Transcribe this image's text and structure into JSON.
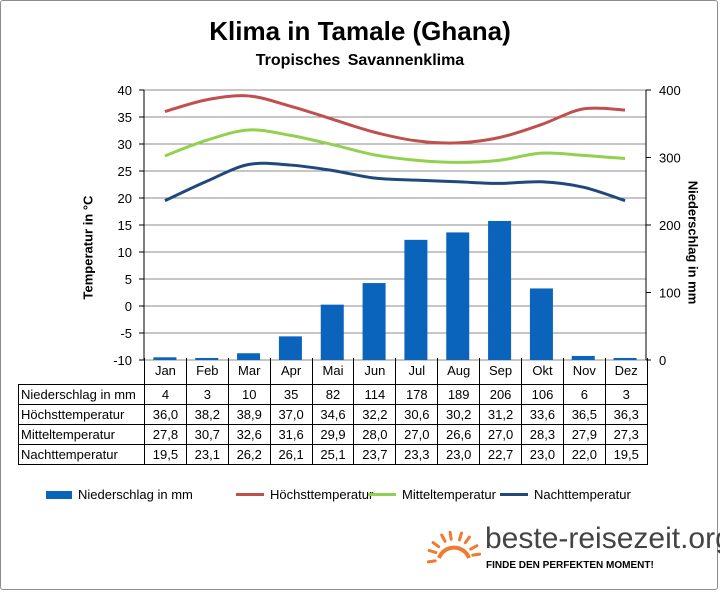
{
  "title": "Klima in Tamale (Ghana)",
  "subtitle": "Tropisches Savannenklima",
  "brand": {
    "name": "beste-reisezeit.org",
    "tagline": "FINDE DEN PERFEKTEN MOMENT!",
    "icon": "sun-icon",
    "color": "#f07a2e"
  },
  "chart_data": {
    "type": "bar+line",
    "categories": [
      "Jan",
      "Feb",
      "Mar",
      "Apr",
      "Mai",
      "Jun",
      "Jul",
      "Aug",
      "Sep",
      "Okt",
      "Nov",
      "Dez"
    ],
    "y_left": {
      "label": "Temperatur in °C",
      "ticks": [
        "40",
        "35",
        "30",
        "25",
        "20",
        "15",
        "10",
        "5",
        "0",
        "-5",
        "-10"
      ],
      "range": [
        -10,
        40
      ]
    },
    "y_right": {
      "label": "Niederschlag in mm",
      "ticks": [
        "400",
        "300",
        "200",
        "100",
        "0"
      ],
      "range": [
        0,
        400
      ]
    },
    "series": [
      {
        "name": "Niederschlag in mm",
        "kind": "bar",
        "axis": "right",
        "color": "#0a64bc",
        "values": [
          4,
          3,
          10,
          35,
          82,
          114,
          178,
          189,
          206,
          106,
          6,
          3
        ],
        "display": [
          "4",
          "3",
          "10",
          "35",
          "82",
          "114",
          "178",
          "189",
          "206",
          "106",
          "6",
          "3"
        ]
      },
      {
        "name": "Höchsttemperatur",
        "kind": "line",
        "axis": "left",
        "color": "#c0504d",
        "values": [
          36.0,
          38.2,
          38.9,
          37.0,
          34.6,
          32.2,
          30.6,
          30.2,
          31.2,
          33.6,
          36.5,
          36.3
        ],
        "display": [
          "36,0",
          "38,2",
          "38,9",
          "37,0",
          "34,6",
          "32,2",
          "30,6",
          "30,2",
          "31,2",
          "33,6",
          "36,5",
          "36,3"
        ]
      },
      {
        "name": "Mitteltemperatur",
        "kind": "line",
        "axis": "left",
        "color": "#92d050",
        "values": [
          27.8,
          30.7,
          32.6,
          31.6,
          29.9,
          28.0,
          27.0,
          26.6,
          27.0,
          28.3,
          27.9,
          27.3
        ],
        "display": [
          "27,8",
          "30,7",
          "32,6",
          "31,6",
          "29,9",
          "28,0",
          "27,0",
          "26,6",
          "27,0",
          "28,3",
          "27,9",
          "27,3"
        ]
      },
      {
        "name": "Nachttemperatur",
        "kind": "line",
        "axis": "left",
        "color": "#1f497d",
        "values": [
          19.5,
          23.1,
          26.2,
          26.1,
          25.1,
          23.7,
          23.3,
          23.0,
          22.7,
          23.0,
          22.0,
          19.5
        ],
        "display": [
          "19,5",
          "23,1",
          "26,2",
          "26,1",
          "25,1",
          "23,7",
          "23,3",
          "23,0",
          "22,7",
          "23,0",
          "22,0",
          "19,5"
        ]
      }
    ],
    "legend": "bottom"
  }
}
